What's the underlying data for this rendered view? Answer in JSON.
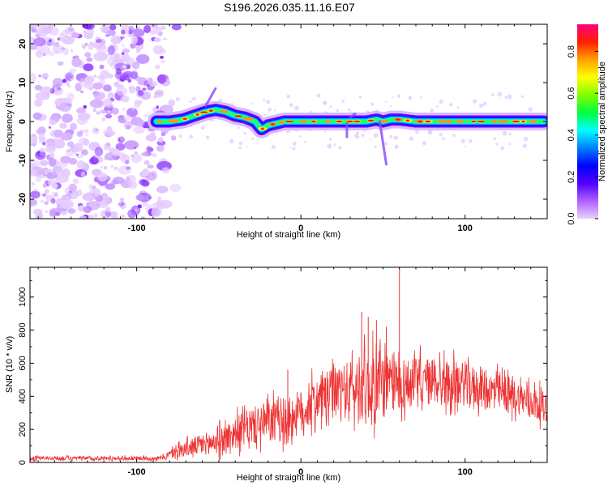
{
  "title": "S196.2026.035.11.16.E07",
  "chart_data": [
    {
      "type": "heatmap",
      "name": "spectrogram",
      "xlabel": "Height of straight line (km)",
      "ylabel": "Frequency (Hz)",
      "xlim": [
        -165,
        150
      ],
      "ylim": [
        -25,
        25
      ],
      "xticks": [
        -100,
        0,
        100
      ],
      "xtick_labels": [
        "-100",
        "0",
        "100"
      ],
      "yticks": [
        -20,
        -10,
        0,
        10,
        20
      ],
      "ytick_labels": [
        "-20",
        "-10",
        "0",
        "10",
        "20"
      ],
      "colorbar": {
        "label": "Normalized spectral amplitude",
        "range": [
          0,
          0.93
        ],
        "ticks": [
          0.0,
          0.2,
          0.4,
          0.6,
          0.8
        ],
        "tick_labels": [
          "0.0",
          "0.2",
          "0.4",
          "0.6",
          "0.8"
        ],
        "colors": [
          "#e8d0ff",
          "#b060ff",
          "#5000ff",
          "#0000ff",
          "#0080ff",
          "#00ffff",
          "#00ff40",
          "#80ff00",
          "#ffff00",
          "#ffa000",
          "#ff2000",
          "#ff0080"
        ]
      },
      "noise_region_x": [
        -165,
        -82
      ],
      "signal_ridge": {
        "x": [
          -88,
          -80,
          -72,
          -65,
          -58,
          -52,
          -46,
          -40,
          -34,
          -28,
          -24,
          -20,
          -15,
          -10,
          -5,
          0,
          10,
          20,
          30,
          40,
          46,
          50,
          55,
          60,
          70,
          80,
          90,
          100,
          110,
          120,
          130,
          140,
          148
        ],
        "y": [
          0,
          0,
          0.5,
          1.5,
          2.5,
          3,
          2.5,
          1.5,
          1,
          0,
          -2,
          -1,
          -0.5,
          0,
          0,
          0,
          0,
          0,
          0,
          0,
          0.5,
          0,
          0.5,
          0.5,
          0,
          0,
          0,
          0,
          0,
          0,
          0,
          0,
          0
        ]
      }
    },
    {
      "type": "line",
      "name": "snr",
      "xlabel": "Height of straight line (km)",
      "ylabel": "SNR (10 * v/v)",
      "xlim": [
        -165,
        150
      ],
      "ylim": [
        0,
        1180
      ],
      "xticks": [
        -100,
        0,
        100
      ],
      "xtick_labels": [
        "-100",
        "0",
        "100"
      ],
      "yticks": [
        0,
        200,
        400,
        600,
        800,
        1000
      ],
      "ytick_labels": [
        "0",
        "200",
        "400",
        "600",
        "800",
        "1000"
      ],
      "color": "#ee3333",
      "envelope": {
        "x": [
          -165,
          -85,
          -75,
          -60,
          -50,
          -40,
          -30,
          -20,
          -10,
          0,
          10,
          20,
          30,
          40,
          50,
          60,
          70,
          80,
          90,
          100,
          110,
          120,
          130,
          140,
          150
        ],
        "mean": [
          25,
          25,
          70,
          110,
          130,
          180,
          220,
          240,
          260,
          300,
          380,
          420,
          440,
          460,
          470,
          480,
          480,
          490,
          480,
          470,
          450,
          420,
          400,
          370,
          330
        ],
        "amp": [
          15,
          15,
          50,
          80,
          100,
          120,
          140,
          160,
          170,
          170,
          170,
          190,
          220,
          260,
          260,
          200,
          190,
          180,
          170,
          160,
          150,
          140,
          130,
          120,
          110
        ]
      },
      "spikes": [
        {
          "x": -8,
          "y": 560
        },
        {
          "x": 37,
          "y": 910
        },
        {
          "x": 41,
          "y": 880
        },
        {
          "x": 46,
          "y": 860
        },
        {
          "x": 52,
          "y": 820
        },
        {
          "x": 60,
          "y": 1180
        }
      ]
    }
  ]
}
